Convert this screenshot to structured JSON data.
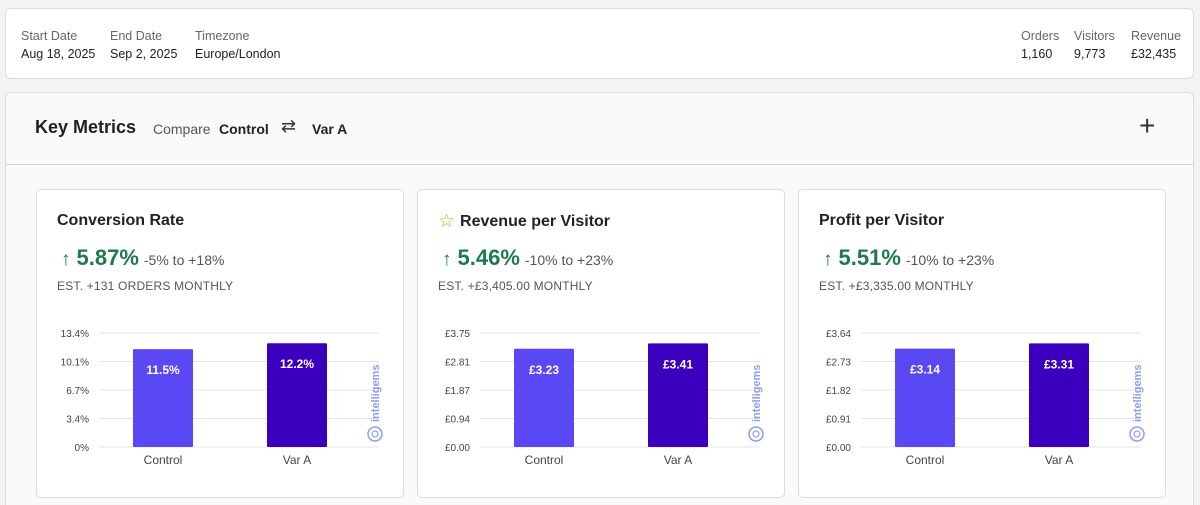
{
  "header": {
    "start_date": {
      "label": "Start Date",
      "value": "Aug 18, 2025"
    },
    "end_date": {
      "label": "End Date",
      "value": "Sep 2, 2025"
    },
    "timezone": {
      "label": "Timezone",
      "value": "Europe/London"
    },
    "orders": {
      "label": "Orders",
      "value": "1,160"
    },
    "visitors": {
      "label": "Visitors",
      "value": "9,773"
    },
    "revenue": {
      "label": "Revenue",
      "value": "£32,435"
    }
  },
  "panel": {
    "title": "Key Metrics",
    "compare_label": "Compare",
    "compare_a": "Control",
    "swap_icon": "⇄",
    "compare_b": "Var A",
    "add_icon": "+"
  },
  "colors": {
    "control": "#5b48f5",
    "variant": "#3a00bd",
    "positive": "#1d7a4c",
    "watermark": "#8f9df0"
  },
  "watermark_text": "intelligems",
  "cards": [
    {
      "title": "Conversion Rate",
      "starred": false,
      "arrow": "↑",
      "lift": "5.87%",
      "range": "-5% to +18%",
      "estimate": "EST. +131 ORDERS MONTHLY",
      "chart_data": {
        "type": "bar",
        "categories": [
          "Control",
          "Var A"
        ],
        "values": [
          11.5,
          12.2
        ],
        "labels": [
          "11.5%",
          "12.2%"
        ],
        "y_ticks": [
          "13.4%",
          "10.1%",
          "6.7%",
          "3.4%",
          "0%"
        ],
        "ylim": [
          0,
          13.4
        ]
      }
    },
    {
      "title": "Revenue per Visitor",
      "starred": true,
      "star_icon": "☆",
      "arrow": "↑",
      "lift": "5.46%",
      "range": "-10% to +23%",
      "estimate": "EST. +£3,405.00 MONTHLY",
      "chart_data": {
        "type": "bar",
        "categories": [
          "Control",
          "Var A"
        ],
        "values": [
          3.23,
          3.41
        ],
        "labels": [
          "£3.23",
          "£3.41"
        ],
        "y_ticks": [
          "£3.75",
          "£2.81",
          "£1.87",
          "£0.94",
          "£0.00"
        ],
        "ylim": [
          0,
          3.75
        ]
      }
    },
    {
      "title": "Profit per Visitor",
      "starred": false,
      "arrow": "↑",
      "lift": "5.51%",
      "range": "-10% to +23%",
      "estimate": "EST. +£3,335.00 MONTHLY",
      "chart_data": {
        "type": "bar",
        "categories": [
          "Control",
          "Var A"
        ],
        "values": [
          3.14,
          3.31
        ],
        "labels": [
          "£3.14",
          "£3.31"
        ],
        "y_ticks": [
          "£3.64",
          "£2.73",
          "£1.82",
          "£0.91",
          "£0.00"
        ],
        "ylim": [
          0,
          3.64
        ]
      }
    }
  ]
}
